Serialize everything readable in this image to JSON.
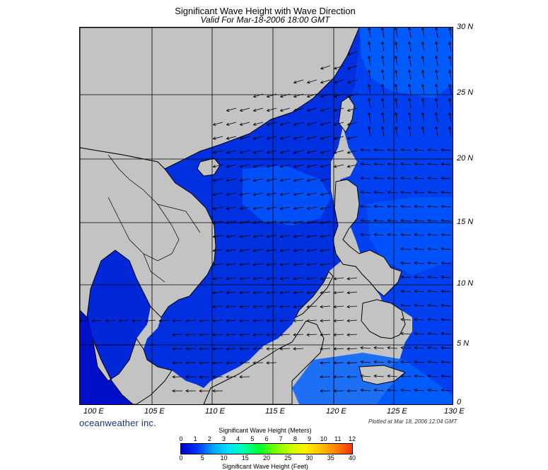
{
  "title": "Significant Wave Height with Wave Direction",
  "subtitle": "Valid For Mar-18-2006 18:00 GMT",
  "longitude_labels": [
    "100 E",
    "105 E",
    "110 E",
    "115 E",
    "120 E",
    "125 E",
    "130 E"
  ],
  "latitude_labels": [
    "30 N",
    "25 N",
    "20 N",
    "15 N",
    "10 N",
    "5 N",
    "0"
  ],
  "brand": "oceanweather inc.",
  "plotted": "Plotted at Mar 18, 2006 12:04 GMT",
  "colorbar": {
    "meters_title": "Significant Wave Height (Meters)",
    "meters_ticks": [
      "0",
      "1",
      "2",
      "3",
      "4",
      "5",
      "6",
      "7",
      "8",
      "9",
      "10",
      "11",
      "12"
    ],
    "feet_ticks": [
      "0",
      "5",
      "10",
      "15",
      "20",
      "25",
      "30",
      "35",
      "40"
    ],
    "feet_title": "Significant Wave Height (Feet)",
    "colors": [
      "#0000c8",
      "#0030ff",
      "#00a0ff",
      "#00e0ff",
      "#00ffb0",
      "#00ff30",
      "#70ff00",
      "#c8ff00",
      "#fff000",
      "#ffc000",
      "#ff8000",
      "#ff3000"
    ]
  },
  "colors": {
    "land": "#c3c3c3",
    "sea_low": "#0018d0",
    "sea_mid": "#0048ff",
    "sea_high": "#0080ff"
  }
}
